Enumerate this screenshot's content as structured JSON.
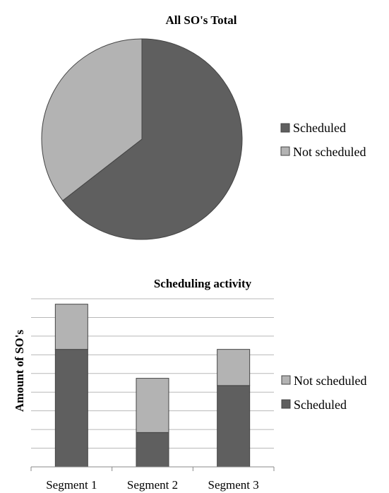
{
  "colors": {
    "scheduled": "#5f5f5f",
    "not_scheduled": "#b3b3b3",
    "stroke": "#444444",
    "grid": "#b8b8b8"
  },
  "chart_data": [
    {
      "type": "pie",
      "title": "All SO's Total",
      "legend_position": "right",
      "slices": [
        {
          "label": "Scheduled",
          "value": 64.5
        },
        {
          "label": "Not scheduled",
          "value": 35.5
        }
      ]
    },
    {
      "type": "bar",
      "stacked": true,
      "title": "Scheduling activity",
      "xlabel": "",
      "ylabel": "Amount of SO's",
      "categories": [
        "Segment 1",
        "Segment 2",
        "Segment 3"
      ],
      "series": [
        {
          "name": "Scheduled",
          "values": [
            6.5,
            1.9,
            4.5
          ]
        },
        {
          "name": "Not scheduled",
          "values": [
            2.5,
            3.0,
            2.0
          ]
        }
      ],
      "ylim": [
        0,
        9.3
      ],
      "gridlines": 9,
      "grid": true,
      "legend_position": "right",
      "legend_order": [
        "Not scheduled",
        "Scheduled"
      ]
    }
  ]
}
